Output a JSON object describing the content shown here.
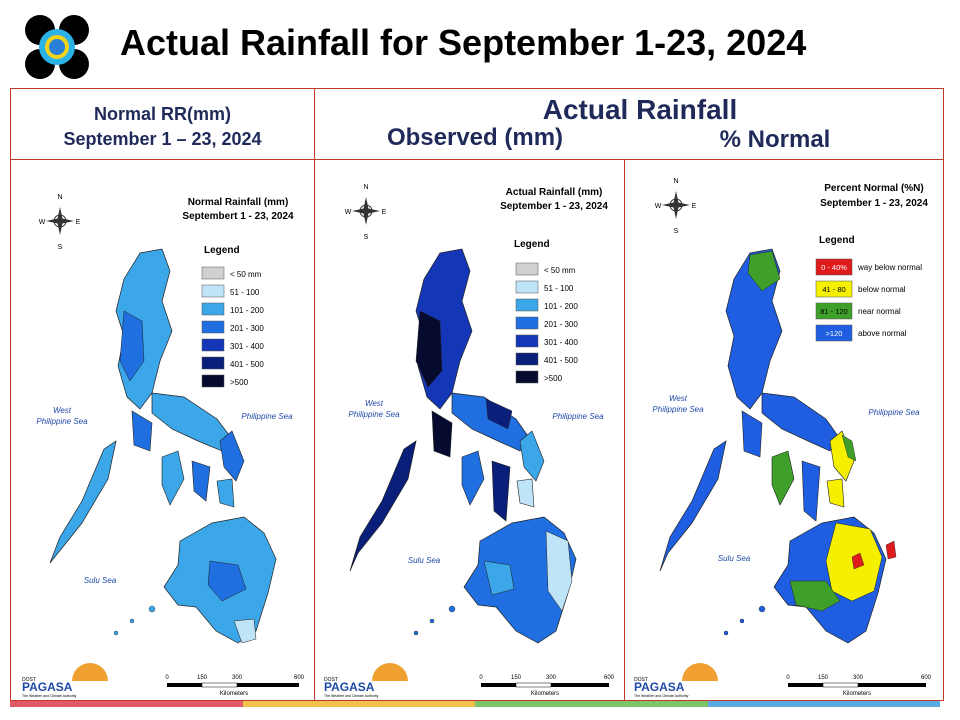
{
  "page_title": "Actual Rainfall for September 1-23, 2024",
  "headers": {
    "normal_line1": "Normal RR(mm)",
    "normal_line2": "September 1 – 23, 2024",
    "actual_title": "Actual Rainfall",
    "observed": "Observed (mm)",
    "percent_normal": "% Normal"
  },
  "compass": {
    "n": "N",
    "s": "S",
    "e": "E",
    "w": "W"
  },
  "sea_labels": {
    "west_line1": "West",
    "west_line2": "Philippine Sea",
    "philippine_sea": "Philippine Sea",
    "sulu_sea": "Sulu Sea"
  },
  "scale": {
    "ticks": [
      "0",
      "150",
      "300",
      "600"
    ],
    "unit": "Kilometers"
  },
  "logo_text": {
    "agency": "PAGASA",
    "tagline": "The Weather and Climate Authority",
    "small": "DOST"
  },
  "panels": [
    {
      "id": "normal",
      "title_line1": "Normal Rainfall (mm)",
      "title_line2": "Septembert 1 - 23, 2024",
      "legend_title": "Legend",
      "legend": [
        {
          "label": "< 50 mm",
          "color": "#d0d0d0"
        },
        {
          "label": "51 - 100",
          "color": "#bfe3f7"
        },
        {
          "label": "101 - 200",
          "color": "#3ba6e8"
        },
        {
          "label": "201 - 300",
          "color": "#1f6fe0"
        },
        {
          "label": "301 - 400",
          "color": "#1437b8"
        },
        {
          "label": "401 - 500",
          "color": "#0a1f7a"
        },
        {
          "label": ">500",
          "color": "#050a2e"
        }
      ]
    },
    {
      "id": "observed",
      "title_line1": "Actual Rainfall (mm)",
      "title_line2": "September 1 - 23, 2024",
      "legend_title": "Legend",
      "legend": [
        {
          "label": "< 50 mm",
          "color": "#d0d0d0"
        },
        {
          "label": "51 - 100",
          "color": "#bfe3f7"
        },
        {
          "label": "101 - 200",
          "color": "#3ba6e8"
        },
        {
          "label": "201 - 300",
          "color": "#1f6fe0"
        },
        {
          "label": "301 - 400",
          "color": "#1437b8"
        },
        {
          "label": "401 - 500",
          "color": "#0a1f7a"
        },
        {
          "label": ">500",
          "color": "#050a2e"
        }
      ]
    },
    {
      "id": "percent",
      "title_line1": "Percent Normal (%N)",
      "title_line2": "September 1 - 23, 2024",
      "legend_title": "Legend",
      "legend": [
        {
          "label": "0 - 40%",
          "desc": "way below normal",
          "color": "#e01b1b",
          "text_color": "#ffffff"
        },
        {
          "label": "41 - 80",
          "desc": "below normal",
          "color": "#f4f000",
          "text_color": "#000000"
        },
        {
          "label": "81 - 120",
          "desc": "near normal",
          "color": "#3ea02a",
          "text_color": "#000000"
        },
        {
          "label": ">120",
          "desc": "above normal",
          "color": "#1f5ee0",
          "text_color": "#ffffff"
        }
      ]
    }
  ],
  "bottom_bar_colors": [
    "#e05a6a",
    "#f0c24a",
    "#7cc46a",
    "#5aa9e0"
  ]
}
